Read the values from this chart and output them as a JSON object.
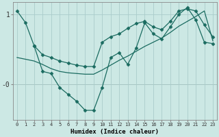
{
  "xlabel": "Humidex (Indice chaleur)",
  "bg_color": "#cce8e4",
  "grid_color": "#aaccca",
  "line_color": "#1a6b60",
  "xlim": [
    -0.5,
    23.5
  ],
  "ylim": [
    -0.52,
    1.18
  ],
  "xticks": [
    0,
    1,
    2,
    3,
    4,
    5,
    6,
    7,
    8,
    9,
    10,
    11,
    12,
    13,
    14,
    15,
    16,
    17,
    18,
    19,
    20,
    21,
    22,
    23
  ],
  "yticks": [
    0.0,
    1.0
  ],
  "ytick_labels": [
    "-0",
    "1"
  ],
  "line1_x": [
    0,
    1,
    2,
    3,
    4,
    5,
    6,
    7,
    8,
    9,
    10,
    11,
    12,
    13,
    14,
    15,
    16,
    17,
    18,
    19,
    20,
    21,
    22,
    23
  ],
  "line1_y": [
    1.05,
    0.88,
    0.55,
    0.42,
    0.38,
    0.33,
    0.3,
    0.27,
    0.25,
    0.25,
    0.6,
    0.68,
    0.72,
    0.8,
    0.87,
    0.9,
    0.82,
    0.78,
    0.9,
    1.05,
    1.08,
    1.05,
    0.85,
    0.68
  ],
  "line2_x": [
    2,
    3,
    4,
    5,
    6,
    7,
    8,
    9,
    10,
    11,
    12,
    13,
    14,
    15,
    16,
    17,
    18,
    19,
    20,
    21,
    22,
    23
  ],
  "line2_y": [
    0.55,
    0.18,
    0.15,
    -0.05,
    -0.15,
    -0.25,
    -0.38,
    -0.38,
    -0.05,
    0.38,
    0.45,
    0.28,
    0.52,
    0.88,
    0.72,
    0.65,
    0.82,
    1.0,
    1.1,
    0.92,
    0.6,
    0.58
  ],
  "line3_x": [
    0,
    2,
    3,
    4,
    5,
    6,
    7,
    8,
    9,
    10,
    11,
    12,
    13,
    14,
    15,
    16,
    17,
    18,
    19,
    20,
    21,
    22,
    23
  ],
  "line3_y": [
    0.38,
    0.33,
    0.28,
    0.22,
    0.18,
    0.16,
    0.15,
    0.14,
    0.14,
    0.2,
    0.27,
    0.34,
    0.4,
    0.47,
    0.54,
    0.6,
    0.66,
    0.74,
    0.83,
    0.9,
    0.97,
    1.05,
    0.62
  ]
}
